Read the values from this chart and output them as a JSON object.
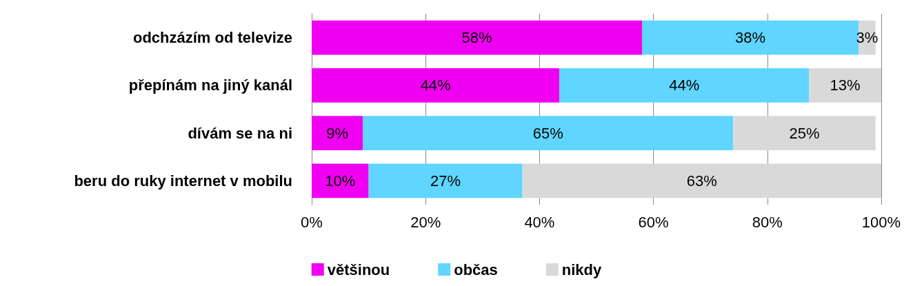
{
  "chart_data": {
    "type": "bar",
    "orientation": "horizontal",
    "stacked": true,
    "categories": [
      "odchzázím od televize",
      "přepínám na jiný kanál",
      "dívám se na ni",
      "beru do ruky internet v mobilu"
    ],
    "series": [
      {
        "name": "většinou",
        "color": "#f000f0",
        "values": [
          58,
          43.5,
          9,
          10
        ],
        "value_labels": [
          "58%",
          "44%",
          "9%",
          "10%"
        ]
      },
      {
        "name": "občas",
        "color": "#5fd5ff",
        "values": [
          38,
          43.8,
          65,
          27
        ],
        "value_labels": [
          "38%",
          "44%",
          "65%",
          "27%"
        ]
      },
      {
        "name": "nikdy",
        "color": "#d9d9d9",
        "values": [
          3,
          12.7,
          25,
          63
        ],
        "value_labels": [
          "3%",
          "13%",
          "25%",
          "63%"
        ]
      }
    ],
    "xlim": [
      0,
      100
    ],
    "xticks": [
      {
        "value": 0,
        "label": "0%"
      },
      {
        "value": 20,
        "label": "20%"
      },
      {
        "value": 40,
        "label": "40%"
      },
      {
        "value": 60,
        "label": "60%"
      },
      {
        "value": 80,
        "label": "80%"
      },
      {
        "value": 100,
        "label": "100%"
      }
    ],
    "grid": "x",
    "legend": "bottom"
  }
}
